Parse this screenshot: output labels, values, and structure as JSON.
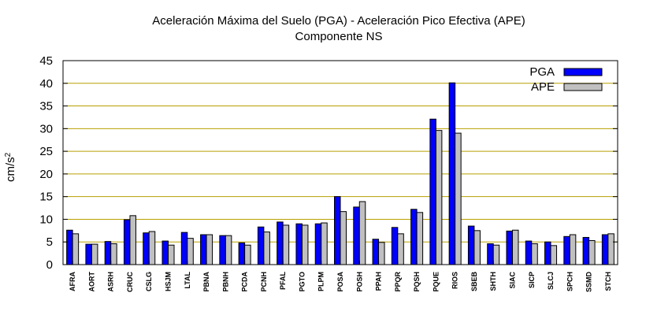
{
  "chart_data": {
    "type": "bar",
    "title_line1": "Aceleración Máxima del Suelo (PGA) -  Aceleración Pico Efectiva (APE)",
    "title_line2": "Componente NS",
    "ylabel": "cm/s",
    "ylabel_sup": "2",
    "ylim": [
      0,
      45
    ],
    "yticks": [
      0,
      5,
      10,
      15,
      20,
      25,
      30,
      35,
      40,
      45
    ],
    "grid": true,
    "legend_position": "top-right",
    "categories": [
      "AFRA",
      "AORT",
      "ASRH",
      "CRUC",
      "CSLG",
      "HSJM",
      "LTAL",
      "PBNA",
      "PBNH",
      "PCDA",
      "PCNH",
      "PFAL",
      "PGTO",
      "PLPM",
      "POSA",
      "POSH",
      "PPAH",
      "PPQR",
      "PQSH",
      "PQUE",
      "RIOS",
      "SBEB",
      "SHTH",
      "SIAC",
      "SICP",
      "SLCJ",
      "SPCH",
      "SSMD",
      "STCH"
    ],
    "series": [
      {
        "name": "PGA",
        "color": "#0000ff",
        "values": [
          7.6,
          4.5,
          5.1,
          9.9,
          7.0,
          5.2,
          7.1,
          6.6,
          6.4,
          4.8,
          8.3,
          9.4,
          9.0,
          9.0,
          15.0,
          12.7,
          5.6,
          8.2,
          12.2,
          32.1,
          40.1,
          8.5,
          4.6,
          7.4,
          5.2,
          5.0,
          6.2,
          6.0,
          6.6
        ]
      },
      {
        "name": "APE",
        "color": "#c0c0c0",
        "values": [
          6.8,
          4.5,
          4.6,
          10.8,
          7.3,
          4.3,
          5.8,
          6.6,
          6.4,
          4.3,
          7.2,
          8.7,
          8.7,
          9.2,
          11.7,
          13.9,
          4.9,
          6.8,
          11.5,
          29.6,
          29.0,
          7.5,
          4.3,
          7.6,
          4.6,
          4.2,
          6.6,
          5.3,
          6.8
        ]
      }
    ]
  }
}
